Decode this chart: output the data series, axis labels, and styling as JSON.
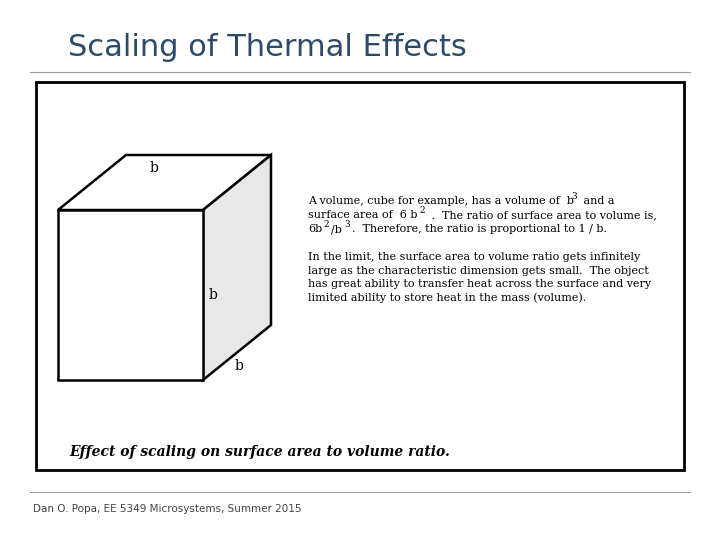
{
  "title": "Scaling of Thermal Effects",
  "title_color": "#2E4A6B",
  "title_fontsize": 22,
  "footer": "Dan O. Popa, EE 5349 Microsystems, Summer 2015",
  "footer_fontsize": 7.5,
  "bg_color": "#FFFFFF",
  "label_b_top": "b",
  "label_b_right": "b",
  "label_b_bottom": "b",
  "caption": "Effect of scaling on surface area to volume ratio."
}
